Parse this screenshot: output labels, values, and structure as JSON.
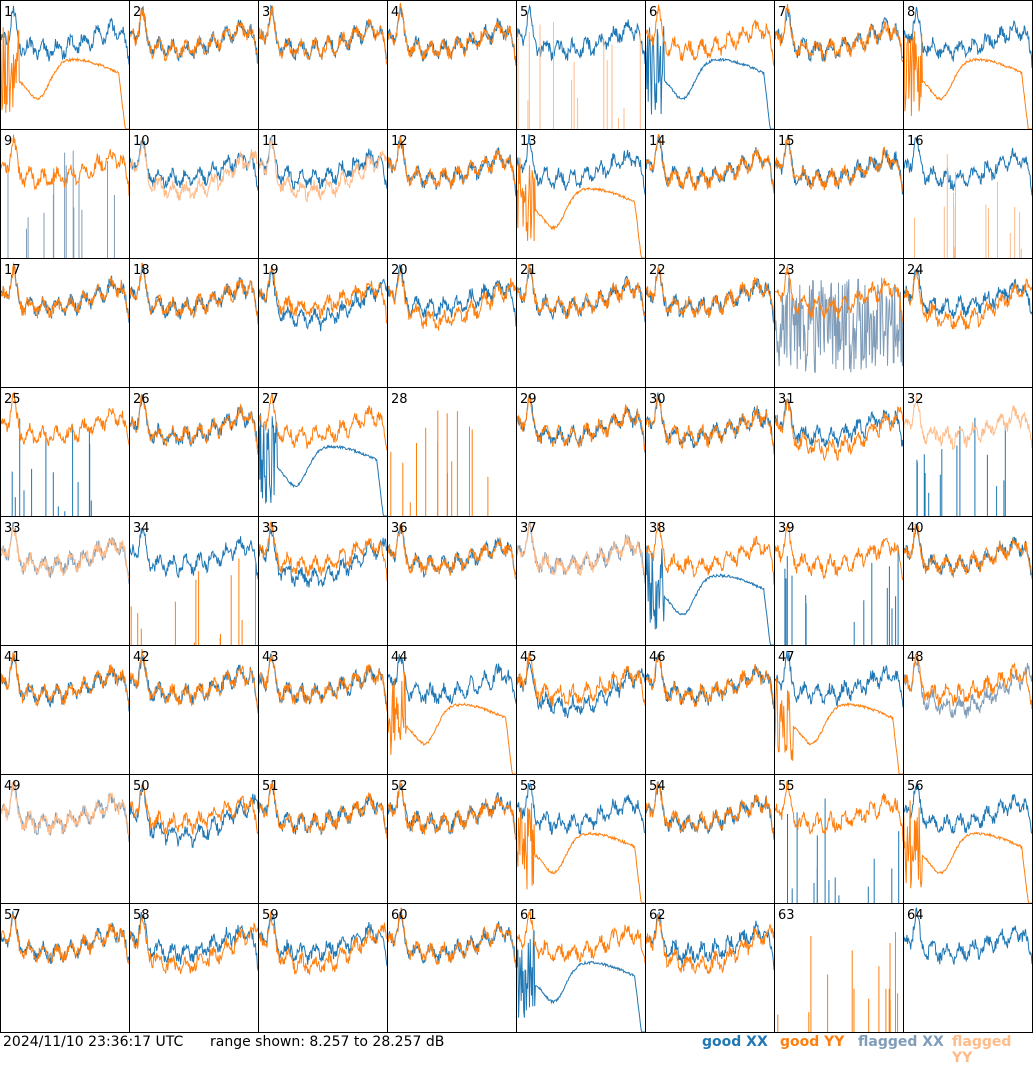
{
  "chart_data": {
    "type": "line",
    "layout": {
      "rows": 8,
      "cols": 8
    },
    "y_range_db": [
      8.257,
      28.257
    ],
    "panels": [
      {
        "label": "1",
        "xx": "good",
        "yy": "good",
        "xx_shape": "normal",
        "yy_shape": "bowl"
      },
      {
        "label": "2",
        "xx": "good",
        "yy": "good",
        "xx_shape": "normal",
        "yy_shape": "normal"
      },
      {
        "label": "3",
        "xx": "good",
        "yy": "good",
        "xx_shape": "normal",
        "yy_shape": "normal"
      },
      {
        "label": "4",
        "xx": "good",
        "yy": "good",
        "xx_shape": "normal",
        "yy_shape": "normal"
      },
      {
        "label": "5",
        "xx": "good",
        "yy": "flagged",
        "xx_shape": "normal",
        "yy_shape": "spiky"
      },
      {
        "label": "6",
        "xx": "good",
        "yy": "good",
        "xx_shape": "bowl",
        "yy_shape": "normal"
      },
      {
        "label": "7",
        "xx": "good",
        "yy": "good",
        "xx_shape": "normal",
        "yy_shape": "normal"
      },
      {
        "label": "8",
        "xx": "good",
        "yy": "good",
        "xx_shape": "normal",
        "yy_shape": "bowl"
      },
      {
        "label": "9",
        "xx": "flagged",
        "yy": "good",
        "xx_shape": "spiky",
        "yy_shape": "normal"
      },
      {
        "label": "10",
        "xx": "good",
        "yy": "flagged",
        "xx_shape": "normal",
        "yy_shape": "low"
      },
      {
        "label": "11",
        "xx": "good",
        "yy": "flagged",
        "xx_shape": "normal",
        "yy_shape": "low"
      },
      {
        "label": "12",
        "xx": "good",
        "yy": "good",
        "xx_shape": "normal",
        "yy_shape": "normal"
      },
      {
        "label": "13",
        "xx": "good",
        "yy": "good",
        "xx_shape": "normal",
        "yy_shape": "bowl"
      },
      {
        "label": "14",
        "xx": "good",
        "yy": "good",
        "xx_shape": "normal",
        "yy_shape": "normal"
      },
      {
        "label": "15",
        "xx": "good",
        "yy": "good",
        "xx_shape": "normal",
        "yy_shape": "normal"
      },
      {
        "label": "16",
        "xx": "good",
        "yy": "flagged",
        "xx_shape": "normal",
        "yy_shape": "spiky"
      },
      {
        "label": "17",
        "xx": "good",
        "yy": "good",
        "xx_shape": "normal",
        "yy_shape": "normal"
      },
      {
        "label": "18",
        "xx": "good",
        "yy": "good",
        "xx_shape": "normal",
        "yy_shape": "normal"
      },
      {
        "label": "19",
        "xx": "good",
        "yy": "good",
        "xx_shape": "low",
        "yy_shape": "normal"
      },
      {
        "label": "20",
        "xx": "good",
        "yy": "good",
        "xx_shape": "normal",
        "yy_shape": "low"
      },
      {
        "label": "21",
        "xx": "good",
        "yy": "good",
        "xx_shape": "normal",
        "yy_shape": "normal"
      },
      {
        "label": "22",
        "xx": "good",
        "yy": "good",
        "xx_shape": "normal",
        "yy_shape": "normal"
      },
      {
        "label": "23",
        "xx": "flagged",
        "yy": "good",
        "xx_shape": "noisy",
        "yy_shape": "normal"
      },
      {
        "label": "24",
        "xx": "good",
        "yy": "good",
        "xx_shape": "normal",
        "yy_shape": "low"
      },
      {
        "label": "25",
        "xx": "good",
        "yy": "good",
        "xx_shape": "spiky",
        "yy_shape": "normal"
      },
      {
        "label": "26",
        "xx": "good",
        "yy": "good",
        "xx_shape": "normal",
        "yy_shape": "normal"
      },
      {
        "label": "27",
        "xx": "good",
        "yy": "good",
        "xx_shape": "bowl",
        "yy_shape": "normal"
      },
      {
        "label": "28",
        "xx": "good",
        "yy": "good",
        "xx_shape": "none",
        "yy_shape": "spiky"
      },
      {
        "label": "29",
        "xx": "good",
        "yy": "good",
        "xx_shape": "normal",
        "yy_shape": "normal"
      },
      {
        "label": "30",
        "xx": "good",
        "yy": "good",
        "xx_shape": "normal",
        "yy_shape": "normal"
      },
      {
        "label": "31",
        "xx": "good",
        "yy": "good",
        "xx_shape": "normal",
        "yy_shape": "low"
      },
      {
        "label": "32",
        "xx": "good",
        "yy": "flagged",
        "xx_shape": "spiky",
        "yy_shape": "normal"
      },
      {
        "label": "33",
        "xx": "flagged",
        "yy": "flagged",
        "xx_shape": "normal",
        "yy_shape": "normal"
      },
      {
        "label": "34",
        "xx": "good",
        "yy": "good",
        "xx_shape": "normal",
        "yy_shape": "spiky"
      },
      {
        "label": "35",
        "xx": "good",
        "yy": "good",
        "xx_shape": "low",
        "yy_shape": "normal"
      },
      {
        "label": "36",
        "xx": "good",
        "yy": "good",
        "xx_shape": "normal",
        "yy_shape": "normal"
      },
      {
        "label": "37",
        "xx": "flagged",
        "yy": "flagged",
        "xx_shape": "normal",
        "yy_shape": "normal"
      },
      {
        "label": "38",
        "xx": "good",
        "yy": "good",
        "xx_shape": "bowl",
        "yy_shape": "normal"
      },
      {
        "label": "39",
        "xx": "good",
        "yy": "good",
        "xx_shape": "spiky",
        "yy_shape": "normal"
      },
      {
        "label": "40",
        "xx": "good",
        "yy": "good",
        "xx_shape": "normal",
        "yy_shape": "normal"
      },
      {
        "label": "41",
        "xx": "good",
        "yy": "good",
        "xx_shape": "normal",
        "yy_shape": "normal"
      },
      {
        "label": "42",
        "xx": "good",
        "yy": "good",
        "xx_shape": "normal",
        "yy_shape": "normal"
      },
      {
        "label": "43",
        "xx": "good",
        "yy": "good",
        "xx_shape": "normal",
        "yy_shape": "normal"
      },
      {
        "label": "44",
        "xx": "good",
        "yy": "good",
        "xx_shape": "normal",
        "yy_shape": "bowl"
      },
      {
        "label": "45",
        "xx": "good",
        "yy": "good",
        "xx_shape": "low",
        "yy_shape": "normal"
      },
      {
        "label": "46",
        "xx": "good",
        "yy": "good",
        "xx_shape": "normal",
        "yy_shape": "normal"
      },
      {
        "label": "47",
        "xx": "good",
        "yy": "good",
        "xx_shape": "normal",
        "yy_shape": "bowl"
      },
      {
        "label": "48",
        "xx": "flagged",
        "yy": "good",
        "xx_shape": "low",
        "yy_shape": "normal"
      },
      {
        "label": "49",
        "xx": "flagged",
        "yy": "flagged",
        "xx_shape": "normal",
        "yy_shape": "normal"
      },
      {
        "label": "50",
        "xx": "good",
        "yy": "good",
        "xx_shape": "low",
        "yy_shape": "normal"
      },
      {
        "label": "51",
        "xx": "good",
        "yy": "good",
        "xx_shape": "normal",
        "yy_shape": "normal"
      },
      {
        "label": "52",
        "xx": "good",
        "yy": "good",
        "xx_shape": "normal",
        "yy_shape": "normal"
      },
      {
        "label": "53",
        "xx": "good",
        "yy": "good",
        "xx_shape": "normal",
        "yy_shape": "bowl"
      },
      {
        "label": "54",
        "xx": "good",
        "yy": "good",
        "xx_shape": "normal",
        "yy_shape": "normal"
      },
      {
        "label": "55",
        "xx": "good",
        "yy": "good",
        "xx_shape": "spiky",
        "yy_shape": "normal"
      },
      {
        "label": "56",
        "xx": "good",
        "yy": "good",
        "xx_shape": "normal",
        "yy_shape": "bowl"
      },
      {
        "label": "57",
        "xx": "good",
        "yy": "good",
        "xx_shape": "normal",
        "yy_shape": "normal"
      },
      {
        "label": "58",
        "xx": "good",
        "yy": "good",
        "xx_shape": "normal",
        "yy_shape": "low"
      },
      {
        "label": "59",
        "xx": "good",
        "yy": "good",
        "xx_shape": "normal",
        "yy_shape": "low"
      },
      {
        "label": "60",
        "xx": "good",
        "yy": "good",
        "xx_shape": "normal",
        "yy_shape": "normal"
      },
      {
        "label": "61",
        "xx": "good",
        "yy": "good",
        "xx_shape": "bowl",
        "yy_shape": "normal"
      },
      {
        "label": "62",
        "xx": "good",
        "yy": "good",
        "xx_shape": "normal",
        "yy_shape": "low"
      },
      {
        "label": "63",
        "xx": "good",
        "yy": "good",
        "xx_shape": "none",
        "yy_shape": "spiky"
      },
      {
        "label": "64",
        "xx": "good",
        "yy": "good",
        "xx_shape": "normal",
        "yy_shape": "none"
      }
    ]
  },
  "footer": {
    "timestamp": "2024/11/10 23:36:17 UTC",
    "range_text": "range shown: 8.257 to 28.257 dB"
  },
  "legend": [
    {
      "label": "good XX",
      "color": "#1f77b4"
    },
    {
      "label": "good YY",
      "color": "#ff7f0e"
    },
    {
      "label": "flagged XX",
      "color": "#7f9cb8"
    },
    {
      "label": "flagged YY",
      "color": "#ffbb88"
    }
  ]
}
